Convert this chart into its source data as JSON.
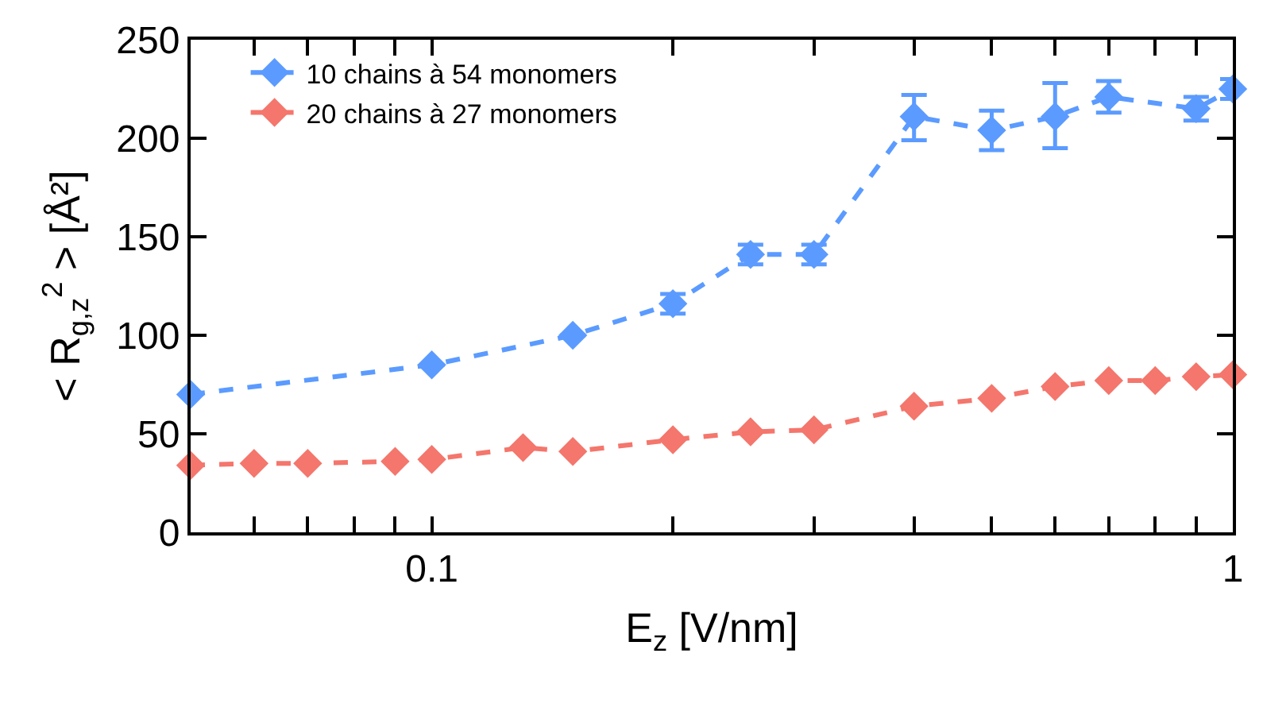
{
  "chart_data": {
    "type": "line",
    "xlabel": "E$_{z}$ [V/nm]",
    "ylabel": "< R$_{g,z}$$^{2}$ > [Å²]",
    "log": "x",
    "xlim": [
      0.05,
      1
    ],
    "ylim": [
      0,
      250
    ],
    "yticks": [
      0,
      50,
      100,
      150,
      200,
      250
    ],
    "xticks": [
      {
        "value": 0.05,
        "label": null
      },
      {
        "value": 0.06,
        "label": null
      },
      {
        "value": 0.07,
        "label": null
      },
      {
        "value": 0.08,
        "label": null
      },
      {
        "value": 0.09,
        "label": null
      },
      0.1,
      {
        "value": 0.2,
        "label": null
      },
      {
        "value": 0.3,
        "label": null
      },
      {
        "value": 0.4,
        "label": null
      },
      {
        "value": 0.5,
        "label": null
      },
      {
        "value": 0.6,
        "label": null
      },
      {
        "value": 0.7,
        "label": null
      },
      {
        "value": 0.8,
        "label": null
      },
      {
        "value": 0.9,
        "label": null
      },
      1
    ],
    "legend": "top left",
    "marker": "diamond",
    "line_style": "dashed",
    "series": [
      {
        "name": "10 chains à 54 monomers",
        "color": "#5b9bff",
        "x": [
          0.05,
          0.1,
          0.15,
          0.2,
          0.25,
          0.3,
          0.4,
          0.5,
          0.6,
          0.7,
          0.9,
          1
        ],
        "values": [
          70,
          85,
          100,
          116,
          141,
          141,
          211,
          204,
          211,
          221,
          215,
          225
        ],
        "errors": [
          null,
          null,
          null,
          5,
          5,
          5,
          [
            199,
            222
          ],
          10,
          [
            195,
            228
          ],
          8,
          6,
          5
        ]
      },
      {
        "name": "20 chains à 27 monomers",
        "color": "#f4766c",
        "x": [
          0.05,
          0.06,
          0.07,
          0.09,
          0.1,
          0.13,
          0.15,
          0.2,
          0.25,
          0.3,
          0.4,
          0.5,
          0.6,
          0.7,
          0.8,
          0.9,
          1
        ],
        "values": [
          34,
          35,
          35,
          36,
          37,
          43,
          41,
          47,
          51,
          52,
          64,
          68,
          74,
          77,
          77,
          79,
          80
        ]
      }
    ]
  }
}
